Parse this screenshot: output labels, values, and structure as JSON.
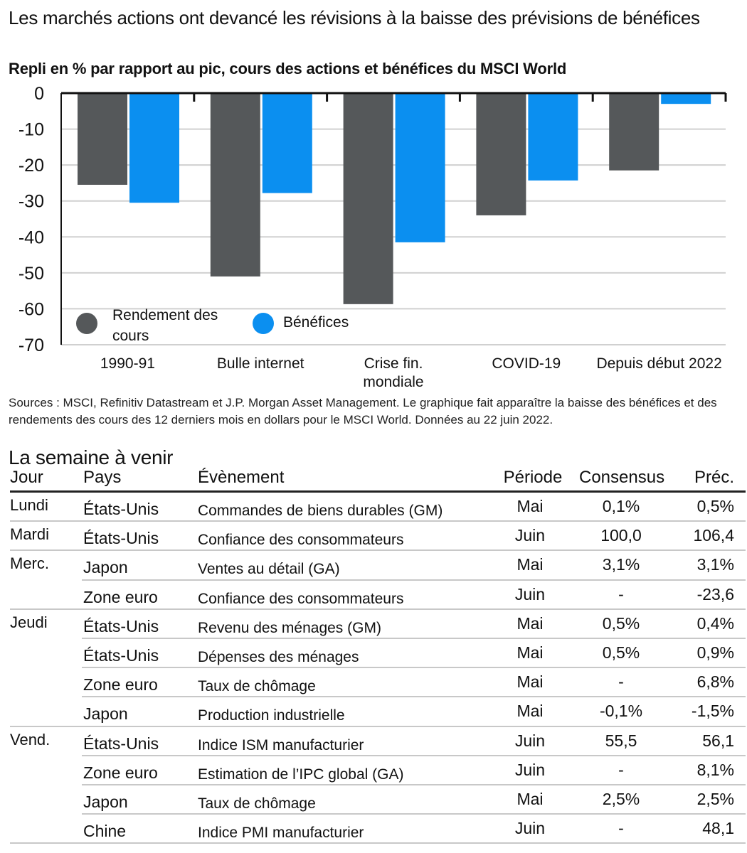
{
  "title": "Les marchés actions ont devancé les révisions à la baisse des prévisions de bénéfices",
  "subtitle": "Repli en % par rapport au pic, cours des actions et bénéfices du MSCI World",
  "chart_data": {
    "type": "bar",
    "categories": [
      "1990-91",
      "Bulle internet",
      "Crise fin. mondiale",
      "COVID-19",
      "Depuis début 2022"
    ],
    "category_lines": [
      [
        "1990-91"
      ],
      [
        "Bulle internet"
      ],
      [
        "Crise fin.",
        "mondiale"
      ],
      [
        "COVID-19"
      ],
      [
        "Depuis début 2022"
      ]
    ],
    "series": [
      {
        "name": "Rendement des cours",
        "name_lines": [
          "Rendement des",
          "cours"
        ],
        "color": "#55585a",
        "values": [
          -25.5,
          -51,
          -58.7,
          -34,
          -21.5
        ]
      },
      {
        "name": "Bénéfices",
        "name_lines": [
          "Bénéfices"
        ],
        "color": "#0b8ff0",
        "values": [
          -30.5,
          -27.8,
          -41.5,
          -24.3,
          -3
        ]
      }
    ],
    "ylim": [
      -70,
      0
    ],
    "yticks": [
      0,
      -10,
      -20,
      -30,
      -40,
      -50,
      -60,
      -70
    ],
    "grid": true,
    "legend": "bottom-left",
    "xlabel": "",
    "ylabel": ""
  },
  "sources": "Sources : MSCI, Refinitiv Datastream et J.P. Morgan Asset Management. Le graphique fait apparaître la baisse des bénéfices et des rendements des cours des 12 derniers mois en dollars pour le MSCI World. Données au 22 juin 2022.",
  "week": {
    "title": "La semaine à venir",
    "headers": {
      "day": "Jour",
      "country": "Pays",
      "event": "Évènement",
      "period": "Période",
      "consensus": "Consensus",
      "previous": "Préc."
    },
    "rows": [
      {
        "day": "Lundi",
        "country": "États-Unis",
        "event": "Commandes de biens durables (GM)",
        "period": "Mai",
        "consensus": "0,1%",
        "previous": "0,5%",
        "group_end": true
      },
      {
        "day": "Mardi",
        "country": "États-Unis",
        "event": "Confiance des consommateurs",
        "period": "Juin",
        "consensus": "100,0",
        "previous": "106,4",
        "group_end": true
      },
      {
        "day": "Merc.",
        "country": "Japon",
        "event": "Ventes au détail (GA)",
        "period": "Mai",
        "consensus": "3,1%",
        "previous": "3,1%",
        "group_end": false
      },
      {
        "day": "",
        "country": "Zone euro",
        "event": "Confiance des consommateurs",
        "period": "Juin",
        "consensus": "-",
        "previous": "-23,6",
        "group_end": true
      },
      {
        "day": "Jeudi",
        "country": "États-Unis",
        "event": "Revenu des ménages (GM)",
        "period": "Mai",
        "consensus": "0,5%",
        "previous": "0,4%",
        "group_end": false
      },
      {
        "day": "",
        "country": "États-Unis",
        "event": "Dépenses des ménages",
        "period": "Mai",
        "consensus": "0,5%",
        "previous": "0,9%",
        "group_end": false
      },
      {
        "day": "",
        "country": "Zone euro",
        "event": "Taux de chômage",
        "period": "Mai",
        "consensus": "-",
        "previous": "6,8%",
        "group_end": false
      },
      {
        "day": "",
        "country": "Japon",
        "event": "Production industrielle",
        "period": "Mai",
        "consensus": "-0,1%",
        "previous": "-1,5%",
        "group_end": true
      },
      {
        "day": "Vend.",
        "country": "États-Unis",
        "event": "Indice ISM manufacturier",
        "period": "Juin",
        "consensus": "55,5",
        "previous": "56,1",
        "group_end": false
      },
      {
        "day": "",
        "country": "Zone euro",
        "event": "Estimation de l’IPC global (GA)",
        "period": "Juin",
        "consensus": "-",
        "previous": "8,1%",
        "group_end": false
      },
      {
        "day": "",
        "country": "Japon",
        "event": "Taux de chômage",
        "period": "Mai",
        "consensus": "2,5%",
        "previous": "2,5%",
        "group_end": false
      },
      {
        "day": "",
        "country": "Chine",
        "event": "Indice PMI manufacturier",
        "period": "Juin",
        "consensus": "-",
        "previous": "48,1",
        "group_end": true
      }
    ]
  }
}
